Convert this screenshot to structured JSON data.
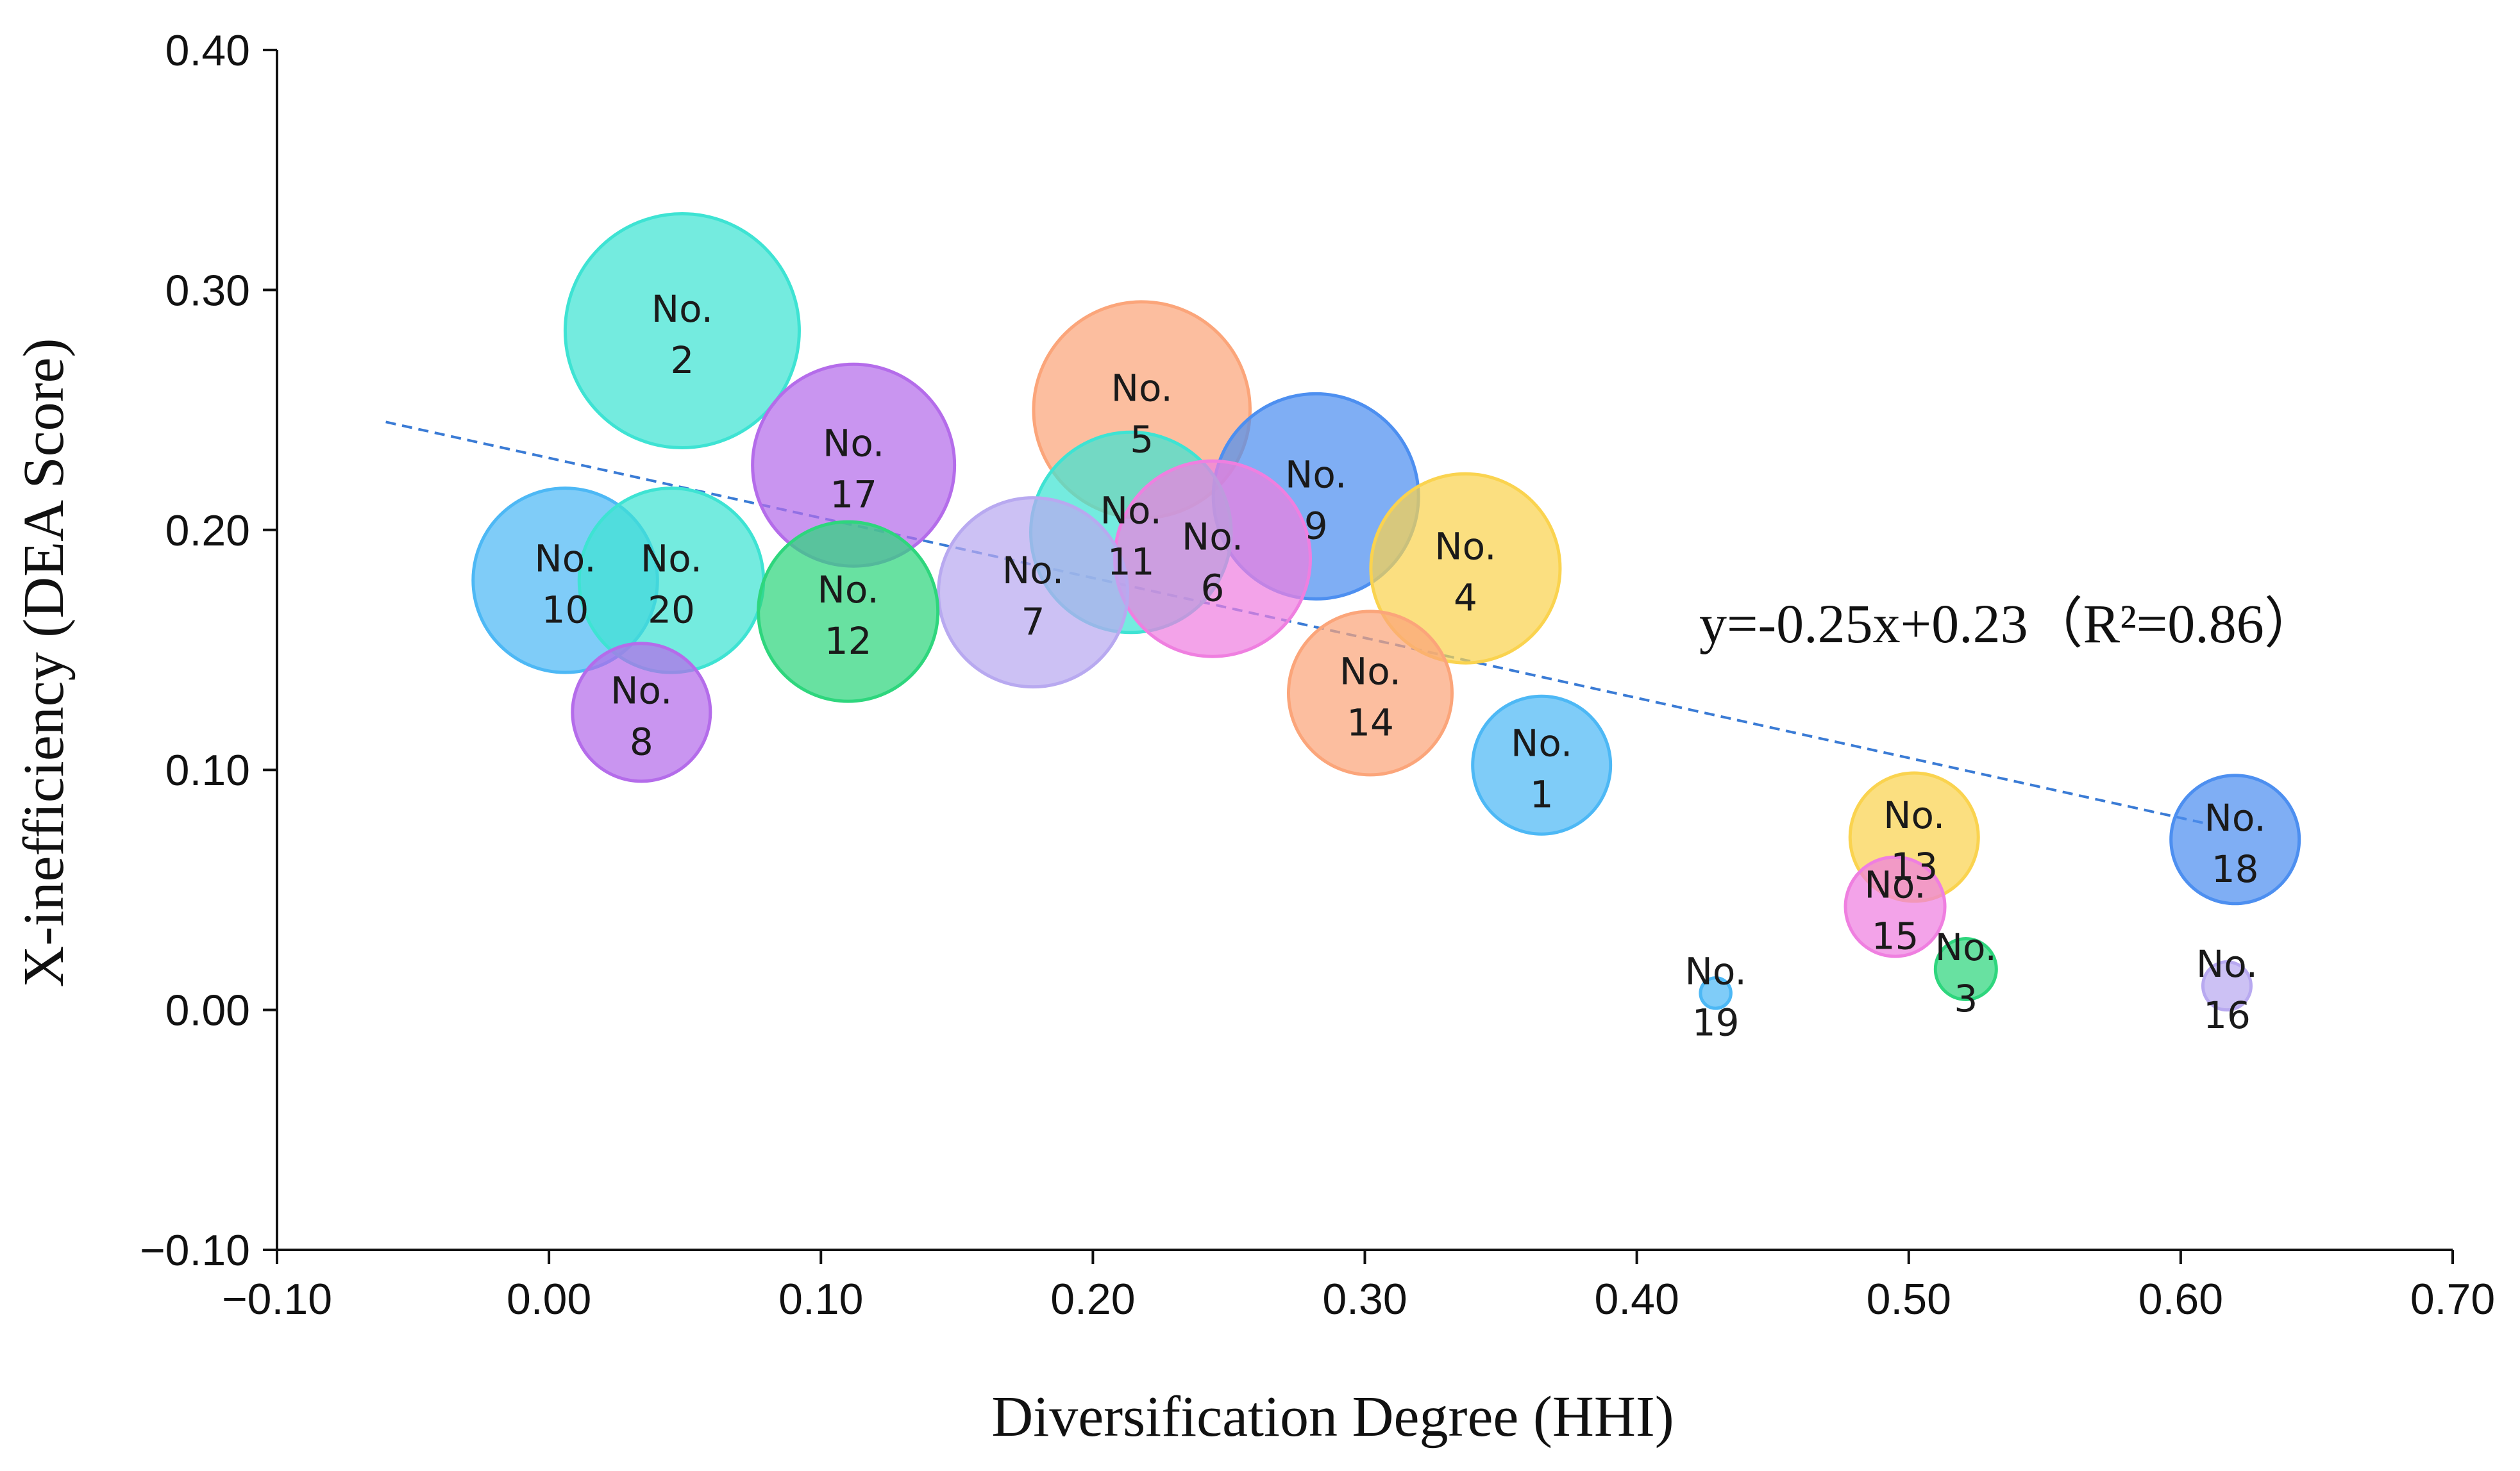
{
  "chart_data": {
    "type": "scatter",
    "subtype": "bubble",
    "title": "",
    "xlabel": "Diversification Degree (HHI)",
    "ylabel": "X-inefficiency (DEA Score)",
    "xlim": [
      -0.1,
      0.7
    ],
    "ylim": [
      -0.1,
      0.4
    ],
    "xticks": [
      "−0.10",
      "0.00",
      "0.10",
      "0.20",
      "0.30",
      "0.40",
      "0.50",
      "0.60",
      "0.70"
    ],
    "yticks": [
      "0.40",
      "0.30",
      "0.20",
      "0.10",
      "0.00",
      "−0.10"
    ],
    "xtick_values": [
      -0.1,
      0.0,
      0.1,
      0.2,
      0.3,
      0.4,
      0.5,
      0.6,
      0.7
    ],
    "ytick_values": [
      0.4,
      0.3,
      0.2,
      0.1,
      0.0,
      -0.1
    ],
    "points": [
      {
        "id": "1",
        "line1": "No.",
        "line2": "1",
        "x": 0.365,
        "y": 0.102,
        "size": 0.86,
        "color": "#4db8f5"
      },
      {
        "id": "2",
        "line1": "No.",
        "line2": "2",
        "x": 0.049,
        "y": 0.283,
        "size": 1.46,
        "color": "#3ee3d3"
      },
      {
        "id": "3",
        "line1": "No.",
        "line2": "3",
        "x": 0.521,
        "y": 0.017,
        "size": 0.38,
        "color": "#2ed67d"
      },
      {
        "id": "4",
        "line1": "No.",
        "line2": "4",
        "x": 0.337,
        "y": 0.184,
        "size": 1.18,
        "color": "#fad34f"
      },
      {
        "id": "5",
        "line1": "No.",
        "line2": "5",
        "x": 0.218,
        "y": 0.25,
        "size": 1.35,
        "color": "#fba57a"
      },
      {
        "id": "6",
        "line1": "No.",
        "line2": "6",
        "x": 0.244,
        "y": 0.188,
        "size": 1.22,
        "color": "#ef7fe0"
      },
      {
        "id": "7",
        "line1": "No.",
        "line2": "7",
        "x": 0.178,
        "y": 0.174,
        "size": 1.18,
        "color": "#b8a9f0"
      },
      {
        "id": "8",
        "line1": "No.",
        "line2": "8",
        "x": 0.034,
        "y": 0.124,
        "size": 0.86,
        "color": "#b46cea"
      },
      {
        "id": "9",
        "line1": "No.",
        "line2": "9",
        "x": 0.282,
        "y": 0.214,
        "size": 1.28,
        "color": "#4d8ff0"
      },
      {
        "id": "10",
        "line1": "No.",
        "line2": "10",
        "x": 0.006,
        "y": 0.179,
        "size": 1.15,
        "color": "#4db8f5"
      },
      {
        "id": "11",
        "line1": "No.",
        "line2": "11",
        "x": 0.214,
        "y": 0.199,
        "size": 1.25,
        "color": "#3ee3d3"
      },
      {
        "id": "12",
        "line1": "No.",
        "line2": "12",
        "x": 0.11,
        "y": 0.166,
        "size": 1.12,
        "color": "#2ed67d"
      },
      {
        "id": "13",
        "line1": "No.",
        "line2": "13",
        "x": 0.502,
        "y": 0.072,
        "size": 0.8,
        "color": "#fad34f"
      },
      {
        "id": "14",
        "line1": "No.",
        "line2": "14",
        "x": 0.302,
        "y": 0.132,
        "size": 1.02,
        "color": "#fba57a"
      },
      {
        "id": "15",
        "line1": "No.",
        "line2": "15",
        "x": 0.495,
        "y": 0.043,
        "size": 0.62,
        "color": "#ef7fe0"
      },
      {
        "id": "16",
        "line1": "No.",
        "line2": "16",
        "x": 0.617,
        "y": 0.01,
        "size": 0.3,
        "color": "#b8a9f0"
      },
      {
        "id": "17",
        "line1": "No.",
        "line2": "17",
        "x": 0.112,
        "y": 0.227,
        "size": 1.26,
        "color": "#b46cea"
      },
      {
        "id": "18",
        "line1": "No.",
        "line2": "18",
        "x": 0.62,
        "y": 0.071,
        "size": 0.8,
        "color": "#4d8ff0"
      },
      {
        "id": "19",
        "line1": "No.",
        "line2": "19",
        "x": 0.429,
        "y": 0.007,
        "size": 0.19,
        "color": "#4db8f5"
      },
      {
        "id": "20",
        "line1": "No.",
        "line2": "20",
        "x": 0.045,
        "y": 0.179,
        "size": 1.15,
        "color": "#3ee3d3"
      }
    ],
    "trendline": {
      "slope": -0.25,
      "intercept": 0.23,
      "x_range": [
        -0.06,
        0.61
      ],
      "color": "#3a7bd5",
      "style": "dashed",
      "label": "y=-0.25x+0.23（R²=0.86）"
    }
  }
}
